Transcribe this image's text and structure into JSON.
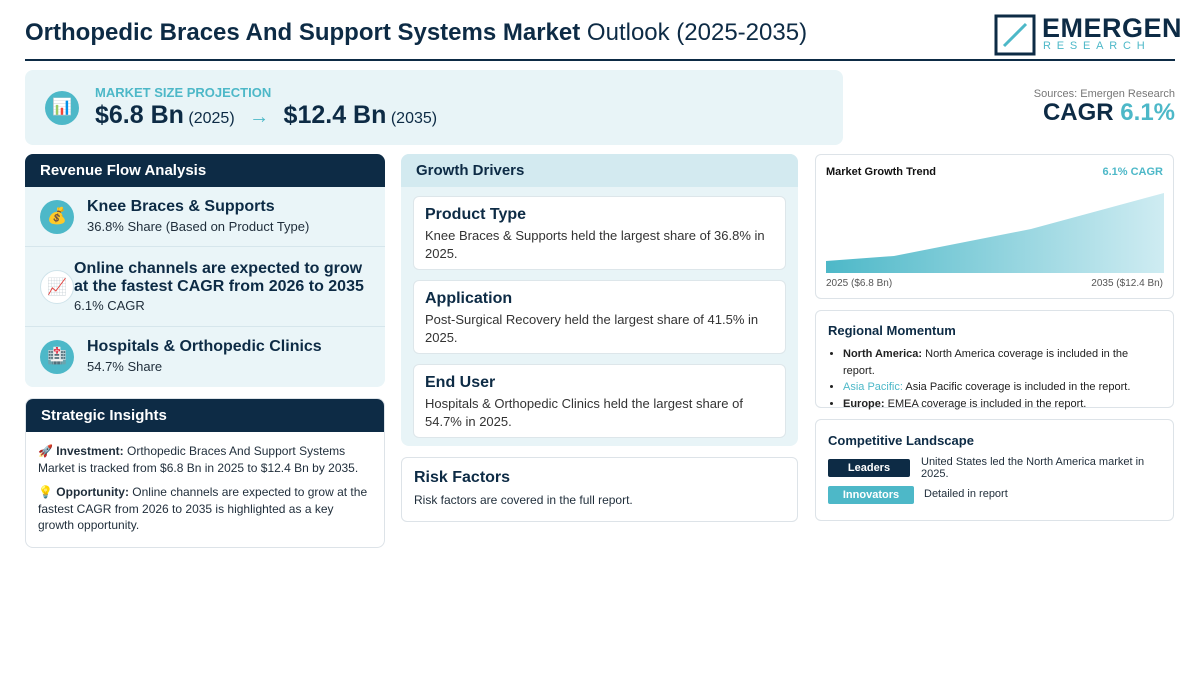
{
  "header": {
    "title_bold": "Orthopedic Braces And Support Systems Market",
    "title_rest": "Outlook (2025-2035)",
    "logo_main": "EMERGEN",
    "logo_sub": "RESEARCH"
  },
  "projection": {
    "icon": "📊",
    "label": "MARKET SIZE PROJECTION",
    "start_value": "$6.8 Bn",
    "start_year": "(2025)",
    "arrow": "→",
    "end_value": "$12.4 Bn",
    "end_year": "(2035)"
  },
  "cagr": {
    "source": "Sources: Emergen Research",
    "label": "CAGR",
    "value": "6.1%"
  },
  "revenue_flow": {
    "title": "Revenue Flow Analysis",
    "items": [
      {
        "icon": "💰",
        "title": "Knee Braces & Supports",
        "detail": "36.8% Share (Based on Product Type)"
      },
      {
        "icon": "📈",
        "title": "Online channels are expected to grow at the fastest CAGR from 2026 to 2035",
        "detail": "6.1% CAGR"
      },
      {
        "icon": "🏥",
        "title": "Hospitals & Orthopedic Clinics",
        "detail": "54.7% Share"
      }
    ]
  },
  "strategic_insights": {
    "title": "Strategic Insights",
    "items": [
      {
        "icon": "🚀",
        "label": "Investment:",
        "text": "Orthopedic Braces And Support Systems Market is tracked from $6.8 Bn in 2025 to $12.4 Bn by 2035."
      },
      {
        "icon": "💡",
        "label": "Opportunity:",
        "text": "Online channels are expected to grow at the fastest CAGR from 2026 to 2035 is highlighted as a key growth opportunity."
      }
    ]
  },
  "growth_drivers": {
    "title": "Growth Drivers",
    "items": [
      {
        "title": "Product Type",
        "text": "Knee Braces & Supports held the largest share of 36.8% in 2025."
      },
      {
        "title": "Application",
        "text": "Post-Surgical Recovery held the largest share of 41.5% in 2025."
      },
      {
        "title": "End User",
        "text": "Hospitals & Orthopedic Clinics held the largest share of 54.7% in 2025."
      }
    ]
  },
  "risk_factors": {
    "title": "Risk Factors",
    "text": "Risk factors are covered in the full report."
  },
  "growth_trend": {
    "title": "Market Growth Trend",
    "badge": "6.1% CAGR",
    "start_label": "2025 ($6.8 Bn)",
    "end_label": "2035 ($12.4 Bn)"
  },
  "regional_momentum": {
    "title": "Regional Momentum",
    "items": [
      {
        "region": "North America:",
        "text": "North America coverage is included in the report."
      },
      {
        "region": "Asia Pacific:",
        "text": "Asia Pacific coverage is included in the report."
      },
      {
        "region": "Europe:",
        "text": "EMEA coverage is included in the report."
      }
    ]
  },
  "competitive_landscape": {
    "title": "Competitive Landscape",
    "items": [
      {
        "tag": "Leaders",
        "text": "United States led the North America market in 2025."
      },
      {
        "tag": "Innovators",
        "text": "Detailed in report"
      }
    ]
  }
}
